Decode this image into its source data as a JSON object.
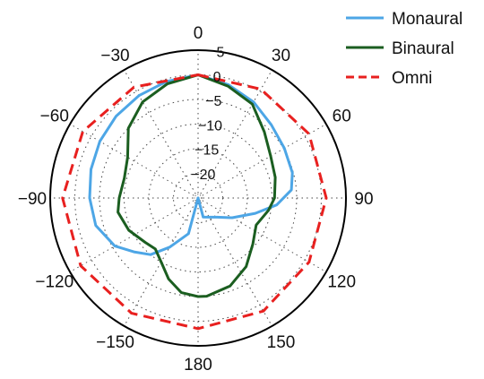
{
  "chart_data": {
    "type": "polar-line",
    "angle_axis": {
      "zero_direction": "top",
      "direction": "clockwise",
      "range": [
        -180,
        180
      ],
      "ticks": [
        0,
        30,
        60,
        90,
        120,
        150,
        180,
        -150,
        -120,
        -90,
        -60,
        -30
      ],
      "tick_labels": [
        "0",
        "30",
        "60",
        "90",
        "120",
        "150",
        "180",
        "−150",
        "−120",
        "−90",
        "−60",
        "−30"
      ]
    },
    "radial_axis": {
      "range": [
        -25,
        5
      ],
      "ticks": [
        5,
        0,
        -5,
        -10,
        -15,
        -20
      ],
      "tick_labels": [
        "5",
        "0",
        "−5",
        "−10",
        "−15",
        "−20"
      ]
    },
    "grid": true,
    "legend": "top-right",
    "series": [
      {
        "name": "Monaural",
        "color": "#4da6e6",
        "dash": "solid",
        "points": [
          [
            0,
            0
          ],
          [
            15,
            -1.2
          ],
          [
            30,
            -2.5
          ],
          [
            45,
            -4
          ],
          [
            60,
            -4.8
          ],
          [
            75,
            -5.2
          ],
          [
            85,
            -6
          ],
          [
            95,
            -9
          ],
          [
            105,
            -13
          ],
          [
            120,
            -17
          ],
          [
            135,
            -19.5
          ],
          [
            150,
            -20.5
          ],
          [
            165,
            -21
          ],
          [
            180,
            -25
          ],
          [
            -165,
            -17.5
          ],
          [
            -150,
            -13.5
          ],
          [
            -140,
            -10
          ],
          [
            -130,
            -8
          ],
          [
            -120,
            -5.5
          ],
          [
            -105,
            -3.5
          ],
          [
            -90,
            -3
          ],
          [
            -75,
            -2.5
          ],
          [
            -60,
            -2
          ],
          [
            -45,
            -1.5
          ],
          [
            -30,
            -1
          ],
          [
            -15,
            -0.5
          ]
        ]
      },
      {
        "name": "Binaural",
        "color": "#1b5e20",
        "dash": "solid",
        "points": [
          [
            0,
            0
          ],
          [
            15,
            -1.5
          ],
          [
            30,
            -3
          ],
          [
            45,
            -6
          ],
          [
            60,
            -8
          ],
          [
            75,
            -8.8
          ],
          [
            90,
            -9.5
          ],
          [
            100,
            -10.5
          ],
          [
            115,
            -12
          ],
          [
            130,
            -10.5
          ],
          [
            145,
            -8
          ],
          [
            160,
            -6
          ],
          [
            175,
            -5
          ],
          [
            180,
            -5
          ],
          [
            -170,
            -5.5
          ],
          [
            -160,
            -7.5
          ],
          [
            -150,
            -10
          ],
          [
            -140,
            -11.5
          ],
          [
            -130,
            -11
          ],
          [
            -115,
            -9.5
          ],
          [
            -100,
            -8.5
          ],
          [
            -90,
            -9
          ],
          [
            -75,
            -9.5
          ],
          [
            -60,
            -8.5
          ],
          [
            -45,
            -5
          ],
          [
            -30,
            -2.5
          ],
          [
            -15,
            -1
          ]
        ]
      },
      {
        "name": "Omni",
        "color": "#e8201f",
        "dash": "dashed",
        "points": [
          [
            0,
            0
          ],
          [
            30,
            0.5
          ],
          [
            60,
            1
          ],
          [
            90,
            1
          ],
          [
            120,
            1
          ],
          [
            150,
            1.5
          ],
          [
            180,
            1.5
          ],
          [
            -150,
            2
          ],
          [
            -120,
            2.5
          ],
          [
            -90,
            2.5
          ],
          [
            -60,
            2
          ],
          [
            -30,
            1
          ]
        ]
      }
    ]
  }
}
